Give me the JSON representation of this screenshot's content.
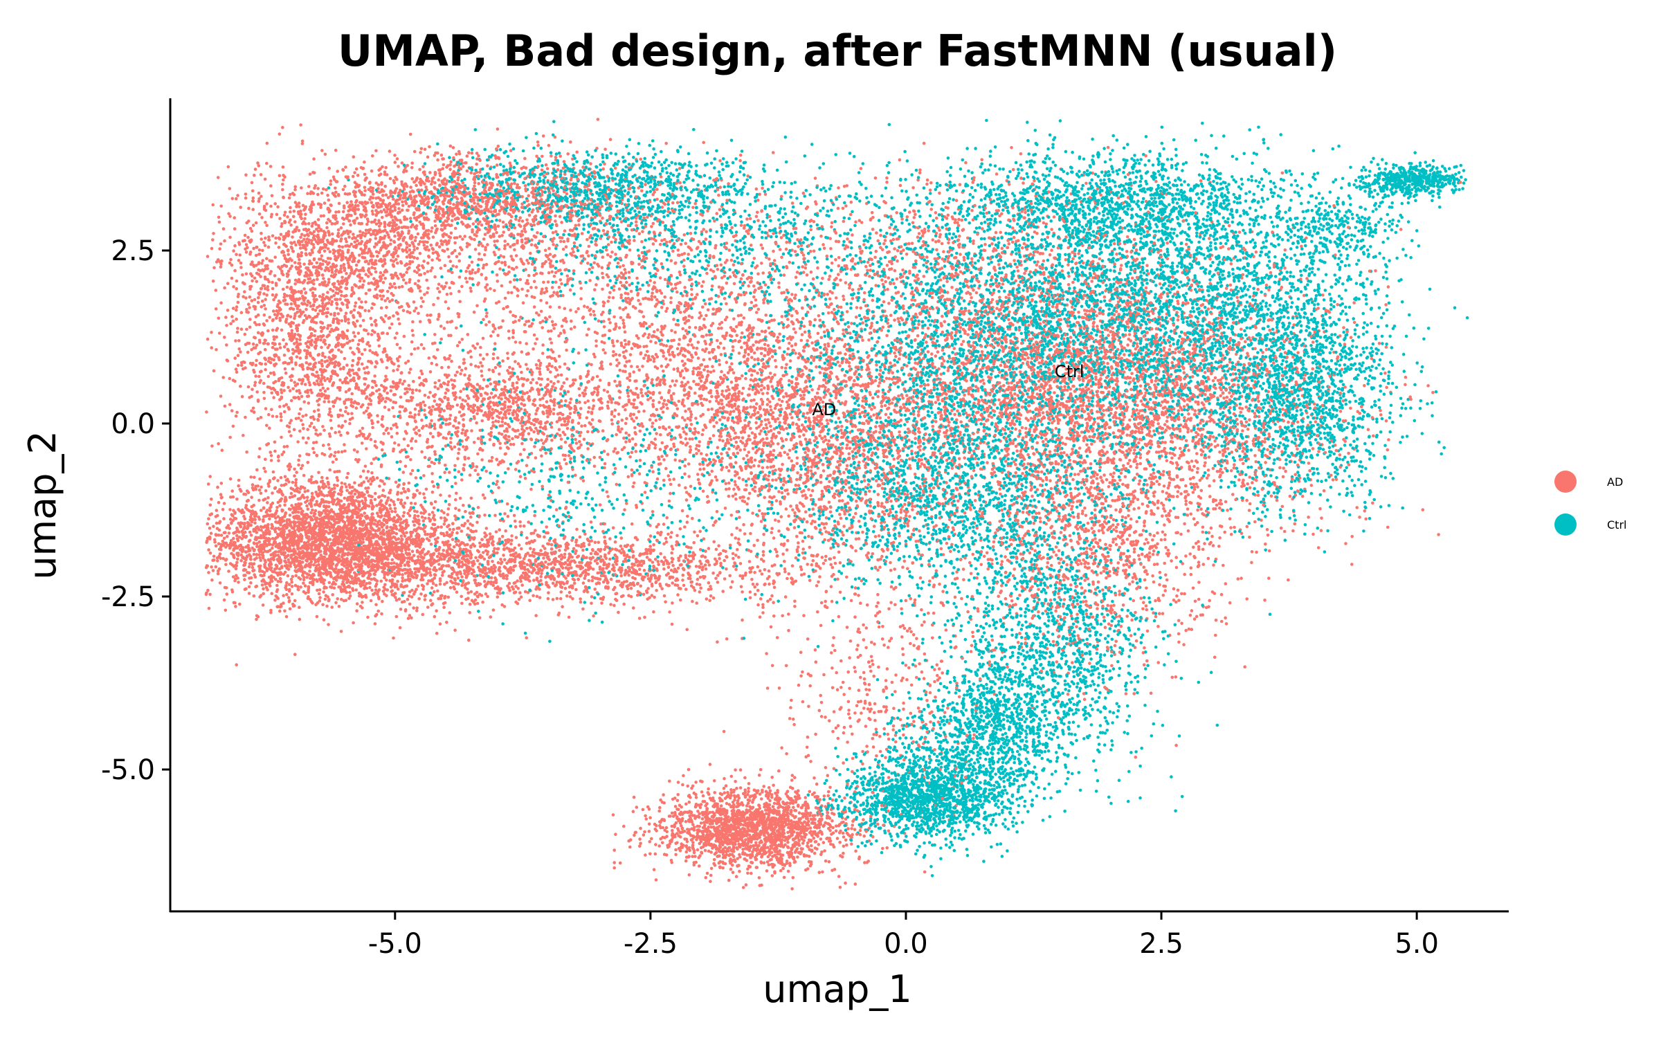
{
  "chart_data": {
    "type": "scatter",
    "title": "UMAP, Bad design, after FastMNN (usual)",
    "xlabel": "umap_1",
    "ylabel": "umap_2",
    "xlim": [
      -7.2,
      5.9
    ],
    "ylim": [
      -7.05,
      4.7
    ],
    "x_ticks": [
      -5.0,
      -2.5,
      0.0,
      2.5,
      5.0
    ],
    "x_tick_labels": [
      "-5.0",
      "-2.5",
      "0.0",
      "2.5",
      "5.0"
    ],
    "y_ticks": [
      -5.0,
      -2.5,
      0.0,
      2.5
    ],
    "y_tick_labels": [
      "-5.0",
      "-2.5",
      "0.0",
      "2.5"
    ],
    "grid": false,
    "legend_position": "right",
    "series": [
      {
        "name": "AD",
        "color": "#F8766D",
        "regions": [
          {
            "cx": -5.7,
            "cy": -1.6,
            "sx": 0.55,
            "sy": 0.45,
            "weight": 9
          },
          {
            "cx": -5.2,
            "cy": -1.9,
            "sx": 0.9,
            "sy": 0.35,
            "weight": 6
          },
          {
            "cx": -3.2,
            "cy": -2.1,
            "sx": 1.0,
            "sy": 0.25,
            "weight": 5
          },
          {
            "cx": -5.8,
            "cy": 1.3,
            "sx": 0.45,
            "sy": 0.9,
            "weight": 6
          },
          {
            "cx": -5.4,
            "cy": 2.6,
            "sx": 0.6,
            "sy": 0.5,
            "weight": 4
          },
          {
            "cx": -4.2,
            "cy": 3.2,
            "sx": 0.8,
            "sy": 0.35,
            "weight": 5
          },
          {
            "cx": -3.0,
            "cy": 2.2,
            "sx": 1.0,
            "sy": 0.7,
            "weight": 4
          },
          {
            "cx": -4.0,
            "cy": 0.2,
            "sx": 0.8,
            "sy": 0.45,
            "weight": 5
          },
          {
            "cx": -1.6,
            "cy": 0.5,
            "sx": 0.9,
            "sy": 0.8,
            "weight": 7
          },
          {
            "cx": -0.7,
            "cy": -0.6,
            "sx": 0.8,
            "sy": 1.0,
            "weight": 6
          },
          {
            "cx": 1.3,
            "cy": 0.7,
            "sx": 0.9,
            "sy": 0.9,
            "weight": 9
          },
          {
            "cx": 2.6,
            "cy": 0.3,
            "sx": 0.9,
            "sy": 1.0,
            "weight": 8
          },
          {
            "cx": 1.8,
            "cy": -2.0,
            "sx": 0.6,
            "sy": 0.8,
            "weight": 4
          },
          {
            "cx": 0.5,
            "cy": 2.5,
            "sx": 1.2,
            "sy": 0.6,
            "weight": 3
          },
          {
            "cx": -1.5,
            "cy": -5.85,
            "sx": 0.45,
            "sy": 0.28,
            "weight": 8
          },
          {
            "cx": -0.2,
            "cy": -4.0,
            "sx": 0.5,
            "sy": 0.9,
            "weight": 1.5
          }
        ]
      },
      {
        "name": "Ctrl",
        "color": "#00BFC4",
        "regions": [
          {
            "cx": -3.0,
            "cy": 3.4,
            "sx": 0.8,
            "sy": 0.3,
            "weight": 4
          },
          {
            "cx": -2.0,
            "cy": 2.6,
            "sx": 1.1,
            "sy": 0.6,
            "weight": 3
          },
          {
            "cx": -3.2,
            "cy": -0.8,
            "sx": 0.9,
            "sy": 0.8,
            "weight": 2
          },
          {
            "cx": 0.3,
            "cy": 0.3,
            "sx": 0.9,
            "sy": 1.2,
            "weight": 7
          },
          {
            "cx": 1.5,
            "cy": 1.5,
            "sx": 1.0,
            "sy": 1.0,
            "weight": 8
          },
          {
            "cx": 2.8,
            "cy": 1.8,
            "sx": 0.9,
            "sy": 0.9,
            "weight": 8
          },
          {
            "cx": 3.8,
            "cy": 0.3,
            "sx": 0.5,
            "sy": 0.8,
            "weight": 6
          },
          {
            "cx": 2.0,
            "cy": 3.2,
            "sx": 0.9,
            "sy": 0.35,
            "weight": 5
          },
          {
            "cx": 0.5,
            "cy": -1.2,
            "sx": 0.8,
            "sy": 0.6,
            "weight": 4
          },
          {
            "cx": 1.4,
            "cy": -3.2,
            "sx": 0.5,
            "sy": 0.8,
            "weight": 5
          },
          {
            "cx": 0.8,
            "cy": -4.5,
            "sx": 0.4,
            "sy": 0.5,
            "weight": 4
          },
          {
            "cx": 0.2,
            "cy": -5.4,
            "sx": 0.4,
            "sy": 0.3,
            "weight": 6
          },
          {
            "cx": 4.95,
            "cy": 3.5,
            "sx": 0.25,
            "sy": 0.12,
            "weight": 2
          },
          {
            "cx": 4.2,
            "cy": 2.8,
            "sx": 0.3,
            "sy": 0.25,
            "weight": 1
          }
        ]
      }
    ],
    "annotations": [
      {
        "text": "AD",
        "x": -0.8,
        "y": 0.2
      },
      {
        "text": "Ctrl",
        "x": 1.6,
        "y": 0.75
      }
    ]
  }
}
